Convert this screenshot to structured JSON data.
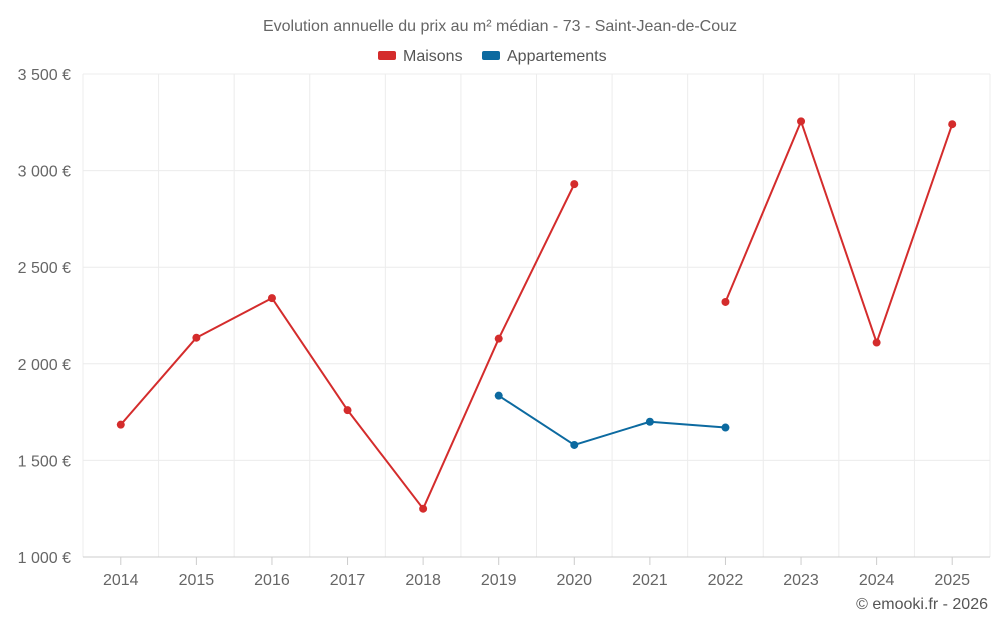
{
  "chart_data": {
    "type": "line",
    "title": "Evolution annuelle du prix au m² médian - 73 - Saint-Jean-de-Couz",
    "categories": [
      "2014",
      "2015",
      "2016",
      "2017",
      "2018",
      "2019",
      "2020",
      "2021",
      "2022",
      "2023",
      "2024",
      "2025"
    ],
    "ylim": [
      1000,
      3500
    ],
    "yticks": [
      1000,
      1500,
      2000,
      2500,
      3000,
      3500
    ],
    "ytick_labels": [
      "1 000 €",
      "1 500 €",
      "2 000 €",
      "2 500 €",
      "3 000 €",
      "3 500 €"
    ],
    "legend_position": "top-center",
    "series": [
      {
        "name": "Maisons",
        "color": "#d42c2c",
        "values": [
          1685,
          2135,
          2340,
          1760,
          1250,
          2130,
          2930,
          null,
          2320,
          3255,
          2110,
          3240
        ]
      },
      {
        "name": "Appartements",
        "color": "#0c6aa0",
        "values": [
          null,
          null,
          null,
          null,
          null,
          1835,
          1580,
          1700,
          1670,
          null,
          null,
          null
        ]
      }
    ]
  },
  "credit": "© emooki.fr - 2026"
}
